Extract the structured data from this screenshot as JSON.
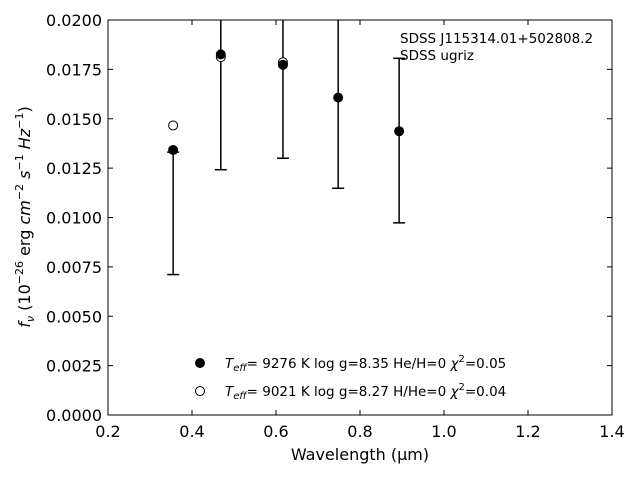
{
  "chart_data": {
    "type": "scatter",
    "xlabel": "Wavelength (μm)",
    "ylabel": "f_ν (10^-26 erg cm^-2 s^-1 Hz^-1)",
    "xlim": [
      0.2,
      1.4
    ],
    "ylim": [
      0.0,
      0.02
    ],
    "x_ticks": [
      0.2,
      0.4,
      0.6,
      0.8,
      1.0,
      1.2,
      1.4
    ],
    "y_ticks": [
      0.0,
      0.0025,
      0.005,
      0.0075,
      0.01,
      0.0125,
      0.015,
      0.0175,
      0.02
    ],
    "x_tick_labels": [
      "0.2",
      "0.4",
      "0.6",
      "0.8",
      "1.0",
      "1.2",
      "1.4"
    ],
    "y_tick_labels": [
      "0.0000",
      "0.0025",
      "0.0050",
      "0.0075",
      "0.0100",
      "0.0125",
      "0.0150",
      "0.0175",
      "0.0200"
    ],
    "grid": false,
    "annotation": [
      "SDSS J115314.01+502808.2",
      "SDSS ugriz"
    ],
    "observed": {
      "x": [
        0.3551,
        0.4686,
        0.6166,
        0.748,
        0.8932
      ],
      "y": [
        0.01342,
        0.01826,
        0.01773,
        0.01607,
        0.01437
      ],
      "err_low": [
        0.00711,
        0.01242,
        0.013,
        0.01148,
        0.00973
      ],
      "err_high": [
        0.01331,
        0.02,
        0.02,
        0.02,
        0.01806
      ]
    },
    "series": [
      {
        "name": "T_eff= 9276 K log g=8.35 He/H=0 χ²=0.05",
        "marker": "filled-circle",
        "x": [
          0.3551,
          0.4686,
          0.6166,
          0.748,
          0.8932
        ],
        "y": [
          0.01342,
          0.01826,
          0.01773,
          0.01607,
          0.01437
        ]
      },
      {
        "name": "T_eff= 9021 K log g=8.27 H/He=0 χ²=0.04",
        "marker": "open-circle",
        "x": [
          0.3551,
          0.4686,
          0.6166
        ],
        "y": [
          0.01466,
          0.01812,
          0.01786
        ]
      }
    ],
    "legend": {
      "placement": "lower-center",
      "entries": [
        {
          "teff": "9276",
          "logg": "8.35",
          "comp": "He/H=0",
          "chi": "=0.05"
        },
        {
          "teff": "9021",
          "logg": "8.27",
          "comp": "H/He=0",
          "chi": "=0.04"
        }
      ]
    }
  }
}
